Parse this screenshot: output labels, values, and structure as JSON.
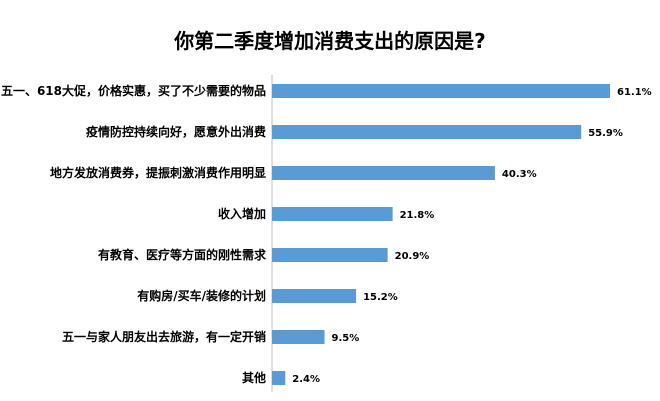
{
  "chart_data": {
    "type": "bar",
    "orientation": "horizontal",
    "title": "你第二季度增加消费支出的原因是?",
    "categories": [
      "五一、618大促，价格实惠，买了不少需要的物品",
      "疫情防控持续向好，愿意外出消费",
      "地方发放消费券，提振刺激消费作用明显",
      "收入增加",
      "有教育、医疗等方面的刚性需求",
      "有购房/买车/装修的计划",
      "五一与家人朋友出去旅游，有一定开销",
      "其他"
    ],
    "values": [
      61.1,
      55.9,
      40.3,
      21.8,
      20.9,
      15.2,
      9.5,
      2.4
    ],
    "value_labels": [
      "61.1%",
      "55.9%",
      "40.3%",
      "21.8%",
      "20.9%",
      "15.2%",
      "9.5%",
      "2.4%"
    ],
    "xlim": [
      0,
      61.1
    ],
    "grid": false,
    "legend": "none",
    "bar_color": "#5b9bd5",
    "axis_color": "#bfbfbf"
  }
}
